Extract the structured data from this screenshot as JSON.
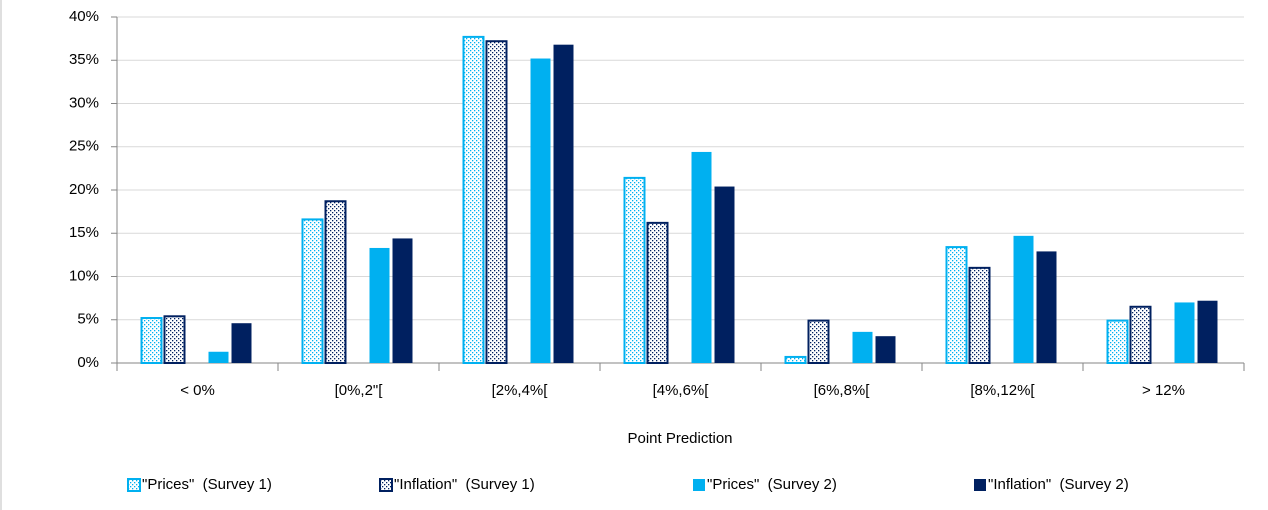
{
  "chart_data": {
    "type": "bar",
    "x_label": "Point Prediction",
    "categories": [
      "< 0%",
      "[0%,2\"[",
      "[2%,4%[",
      "[4%,6%[",
      "[6%,8%[",
      "[8%,12%[",
      "> 12%"
    ],
    "series": [
      {
        "name": "\"Prices\"  (Survey 1)",
        "color": "#00b0f0",
        "pattern": "dots",
        "values": [
          5.2,
          16.6,
          37.7,
          21.4,
          0.7,
          13.4,
          4.9
        ]
      },
      {
        "name": "\"Inflation\"  (Survey 1)",
        "color": "#002060",
        "pattern": "dots",
        "values": [
          5.4,
          18.7,
          37.2,
          16.2,
          4.9,
          11.0,
          6.5
        ]
      },
      {
        "name": "\"Prices\"  (Survey 2)",
        "color": "#00b0f0",
        "pattern": "solid",
        "values": [
          1.3,
          13.3,
          35.2,
          24.4,
          3.6,
          14.7,
          7.0
        ]
      },
      {
        "name": "\"Inflation\"  (Survey 2)",
        "color": "#002060",
        "pattern": "solid",
        "values": [
          4.6,
          14.4,
          36.8,
          20.4,
          3.1,
          12.9,
          7.2
        ]
      }
    ],
    "ylim": [
      0,
      40
    ],
    "yticks": [
      {
        "value": 0,
        "label": "0%"
      },
      {
        "value": 5,
        "label": "5%"
      },
      {
        "value": 10,
        "label": "10%"
      },
      {
        "value": 15,
        "label": "15%"
      },
      {
        "value": 20,
        "label": "20%"
      },
      {
        "value": 25,
        "label": "25%"
      },
      {
        "value": 30,
        "label": "30%"
      },
      {
        "value": 35,
        "label": "35%"
      },
      {
        "value": 40,
        "label": "40%"
      }
    ],
    "grid": true,
    "legend": "bottom"
  }
}
